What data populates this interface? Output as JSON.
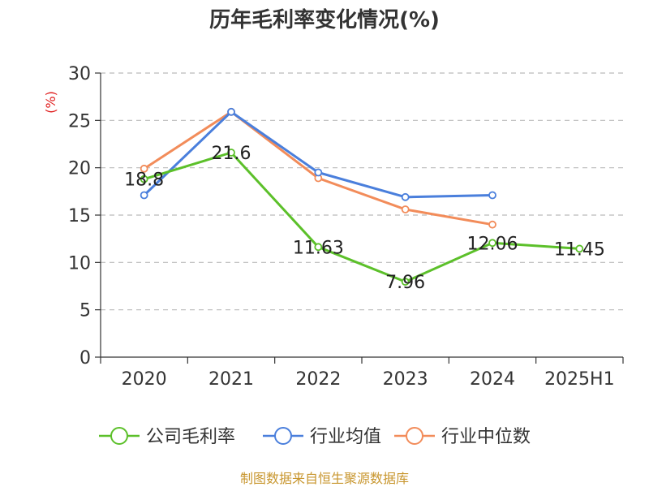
{
  "chart_data": {
    "type": "line",
    "title": "历年毛利率变化情况(%)",
    "ylabel": "(%)",
    "xlabel": "",
    "categories": [
      "2020",
      "2021",
      "2022",
      "2023",
      "2024",
      "2025H1"
    ],
    "ylim": [
      0,
      30
    ],
    "yticks": [
      0,
      5,
      10,
      15,
      20,
      25,
      30
    ],
    "grid": true,
    "legend_position": "bottom",
    "series": [
      {
        "name": "公司毛利率",
        "color": "#5cc02a",
        "values": [
          18.8,
          21.6,
          11.63,
          7.96,
          12.06,
          11.45
        ],
        "labels": [
          "18.8",
          "21.6",
          "11.63",
          "7.96",
          "12.06",
          "11.45"
        ]
      },
      {
        "name": "行业均值",
        "color": "#4a7fdc",
        "values": [
          17.1,
          25.9,
          19.5,
          16.9,
          17.1,
          null
        ]
      },
      {
        "name": "行业中位数",
        "color": "#f28c5a",
        "values": [
          19.9,
          25.9,
          18.9,
          15.6,
          14.0,
          null
        ]
      }
    ]
  },
  "source": "制图数据来自恒生聚源数据库"
}
